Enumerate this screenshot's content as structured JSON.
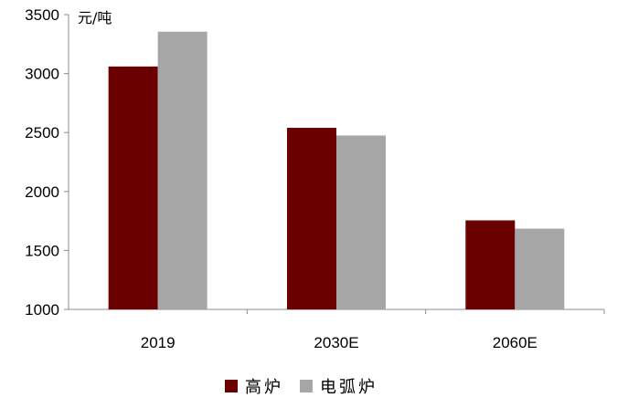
{
  "chart_data": {
    "type": "bar",
    "ylabel": "元/吨",
    "categories": [
      "2019",
      "2030E",
      "2060E"
    ],
    "series": [
      {
        "name": "高炉",
        "values": [
          3060,
          2540,
          1755
        ],
        "color": "#6b0000"
      },
      {
        "name": "电弧炉",
        "values": [
          3355,
          2475,
          1685
        ],
        "color": "#a6a6a6"
      }
    ],
    "ylim": [
      1000,
      3500
    ],
    "yticks": [
      1000,
      1500,
      2000,
      2500,
      3000,
      3500
    ],
    "grid": false,
    "legend": "bottom"
  }
}
